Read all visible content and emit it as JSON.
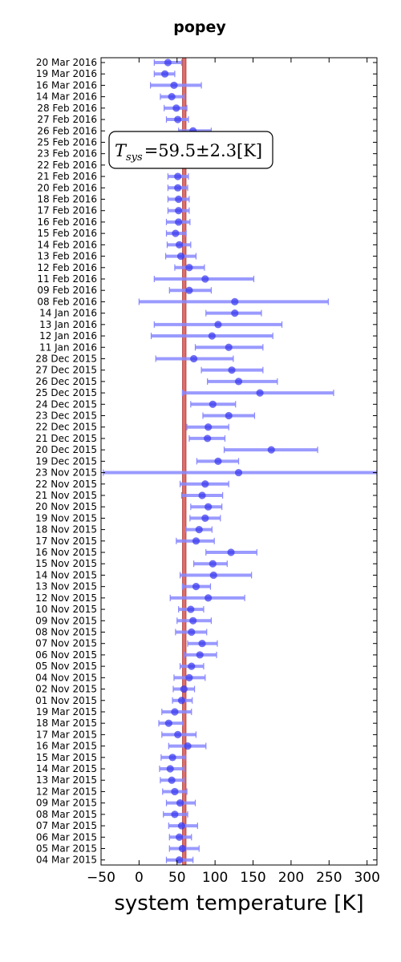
{
  "chart_data": {
    "type": "scatter",
    "title": "popey",
    "xlabel": "system temperature [K]",
    "ylabel": "",
    "xlim": [
      -50,
      313
    ],
    "xticks": [
      -50,
      0,
      50,
      100,
      150,
      200,
      250,
      300
    ],
    "xtick_labels": [
      "−50",
      "0",
      "50",
      "100",
      "150",
      "200",
      "250",
      "300"
    ],
    "annotation": "T_sys = 59.5 ± 2.3 [K]",
    "annotation_parts": {
      "T": "T",
      "sub": "sys",
      "rest": "=59.5±2.3[K]"
    },
    "mean_line": {
      "value": 59.5,
      "uncertainty": 2.3,
      "color": "#d9534f"
    },
    "point_color": "#3333ee",
    "errorbar_color": "#8888ff",
    "categories": [
      "20 Mar 2016",
      "19 Mar 2016",
      "16 Mar 2016",
      "14 Mar 2016",
      "28 Feb 2016",
      "27 Feb 2016",
      "26 Feb 2016",
      "25 Feb 2016",
      "23 Feb 2016",
      "22 Feb 2016",
      "21 Feb 2016",
      "20 Feb 2016",
      "18 Feb 2016",
      "17 Feb 2016",
      "16 Feb 2016",
      "15 Feb 2016",
      "14 Feb 2016",
      "13 Feb 2016",
      "12 Feb 2016",
      "11 Feb 2016",
      "09 Feb 2016",
      "08 Feb 2016",
      "14 Jan 2016",
      "13 Jan 2016",
      "12 Jan 2016",
      "11 Jan 2016",
      "28 Dec 2015",
      "27 Dec 2015",
      "26 Dec 2015",
      "25 Dec 2015",
      "24 Dec 2015",
      "23 Dec 2015",
      "22 Dec 2015",
      "21 Dec 2015",
      "20 Dec 2015",
      "19 Dec 2015",
      "23 Nov 2015",
      "22 Nov 2015",
      "21 Nov 2015",
      "20 Nov 2015",
      "19 Nov 2015",
      "18 Nov 2015",
      "17 Nov 2015",
      "16 Nov 2015",
      "15 Nov 2015",
      "14 Nov 2015",
      "13 Nov 2015",
      "12 Nov 2015",
      "10 Nov 2015",
      "09 Nov 2015",
      "08 Nov 2015",
      "07 Nov 2015",
      "06 Nov 2015",
      "05 Nov 2015",
      "04 Nov 2015",
      "02 Nov 2015",
      "01 Nov 2015",
      "19 Mar 2015",
      "18 Mar 2015",
      "17 Mar 2015",
      "16 Mar 2015",
      "15 Mar 2015",
      "14 Mar 2015",
      "13 Mar 2015",
      "12 Mar 2015",
      "09 Mar 2015",
      "08 Mar 2015",
      "07 Mar 2015",
      "06 Mar 2015",
      "05 Mar 2015",
      "04 Mar 2015"
    ],
    "values": [
      38,
      34,
      46,
      43,
      49,
      51,
      71,
      null,
      null,
      null,
      51,
      51,
      52,
      52,
      52,
      48,
      53,
      55,
      66,
      87,
      66,
      126,
      126,
      104,
      96,
      118,
      72,
      122,
      131,
      159,
      97,
      118,
      91,
      90,
      174,
      104,
      131,
      87,
      83,
      91,
      87,
      79,
      75,
      121,
      97,
      98,
      75,
      91,
      68,
      71,
      69,
      83,
      80,
      69,
      66,
      59,
      56,
      47,
      39,
      51,
      64,
      44,
      41,
      43,
      47,
      54,
      47,
      56,
      53,
      57,
      53
    ],
    "err_low": [
      20,
      20,
      15,
      28,
      33,
      36,
      52,
      null,
      null,
      null,
      38,
      38,
      38,
      38,
      36,
      36,
      37,
      35,
      47,
      20,
      40,
      0,
      88,
      20,
      16,
      74,
      22,
      82,
      90,
      57,
      68,
      84,
      63,
      66,
      112,
      76,
      -47,
      54,
      56,
      68,
      67,
      62,
      49,
      88,
      72,
      54,
      57,
      41,
      52,
      50,
      48,
      64,
      60,
      54,
      46,
      45,
      44,
      30,
      26,
      30,
      39,
      29,
      27,
      28,
      31,
      36,
      32,
      39,
      40,
      40,
      36
    ],
    "err_high": [
      56,
      47,
      82,
      59,
      63,
      65,
      95,
      null,
      null,
      null,
      65,
      64,
      66,
      66,
      67,
      62,
      68,
      75,
      86,
      151,
      95,
      249,
      161,
      188,
      176,
      163,
      124,
      163,
      182,
      256,
      127,
      152,
      118,
      113,
      235,
      131,
      313,
      118,
      110,
      109,
      107,
      96,
      99,
      155,
      116,
      148,
      94,
      139,
      85,
      95,
      89,
      103,
      102,
      85,
      87,
      73,
      70,
      69,
      58,
      75,
      88,
      61,
      59,
      59,
      63,
      74,
      64,
      77,
      69,
      79,
      71
    ]
  }
}
